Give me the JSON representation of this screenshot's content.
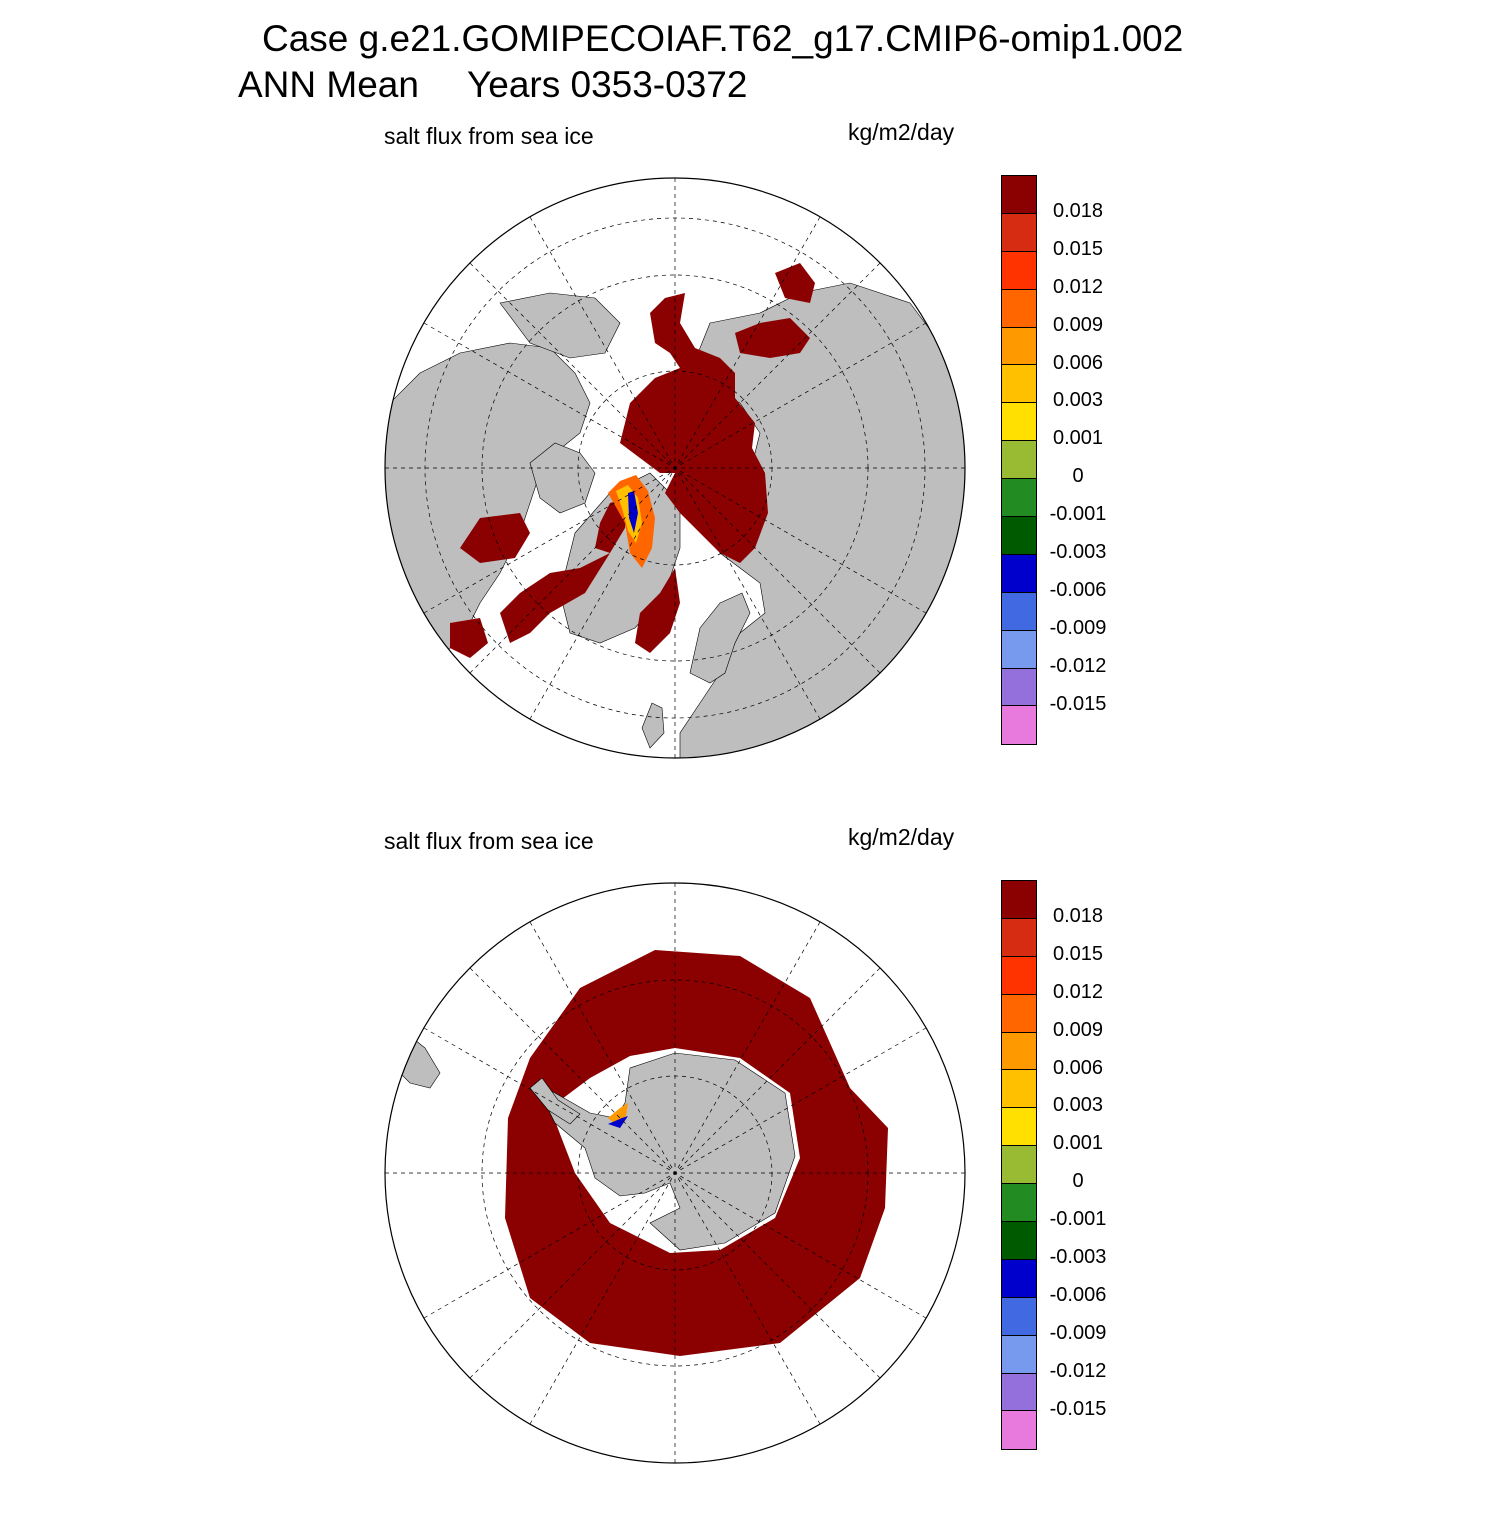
{
  "header": {
    "title": "Case g.e21.GOMIPECOIAF.T62_g17.CMIP6-omip1.002",
    "season": "ANN Mean",
    "years": "Years 0353-0372"
  },
  "panels": [
    {
      "name": "north",
      "title": "salt flux from sea ice",
      "units": "kg/m2/day",
      "hemisphere": "Northern"
    },
    {
      "name": "south",
      "title": "salt flux from sea ice",
      "units": "kg/m2/day",
      "hemisphere": "Southern"
    }
  ],
  "colorbar": {
    "labels": [
      "0.018",
      "0.015",
      "0.012",
      "0.009",
      "0.006",
      "0.003",
      "0.001",
      "0",
      "-0.001",
      "-0.003",
      "-0.006",
      "-0.009",
      "-0.012",
      "-0.015"
    ],
    "colors": [
      "#8b0000",
      "#d62d12",
      "#ff3300",
      "#ff6600",
      "#ff9900",
      "#ffc000",
      "#ffe000",
      "#99bb33",
      "#228b22",
      "#005a00",
      "#0000cc",
      "#4169e1",
      "#7799ee",
      "#9370db",
      "#e87add"
    ]
  },
  "map_colors": {
    "land": "#bebebe",
    "ice_flux": "#8b0000",
    "ocean": "#ffffff"
  }
}
